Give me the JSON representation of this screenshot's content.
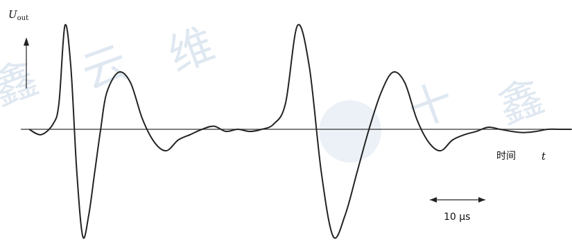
{
  "chart_data": {
    "type": "line",
    "title": "",
    "ylabel": "U",
    "ylabel_sub": "out",
    "xlabel_text": "时间",
    "xlabel_symbol": "t",
    "scale_bar": {
      "label": "10 μs",
      "duration_us": 10
    },
    "y_ticks_shown": false,
    "grid": false,
    "series": [
      {
        "values_description_free": true,
        "x_us": [
          0,
          2,
          4,
          5,
          6,
          7,
          8,
          9,
          10,
          11,
          12,
          13,
          15,
          17,
          19,
          21,
          23,
          25,
          27,
          29,
          31,
          33,
          35,
          37,
          39,
          41,
          43,
          45,
          47,
          49,
          51,
          53,
          55,
          57,
          59,
          61,
          63,
          65,
          67,
          69,
          71,
          73,
          75,
          77,
          79,
          81,
          83,
          85,
          87,
          89,
          91
        ],
        "y_rel": [
          0,
          -0.05,
          0.05,
          0.25,
          1.0,
          0.6,
          -0.4,
          -1.0,
          -0.8,
          -0.4,
          0.0,
          0.35,
          0.55,
          0.45,
          0.1,
          -0.12,
          -0.2,
          -0.1,
          -0.05,
          0.0,
          0.03,
          -0.02,
          0.0,
          -0.02,
          0.0,
          0.05,
          0.25,
          1.0,
          0.6,
          -0.4,
          -1.0,
          -0.8,
          -0.4,
          0.0,
          0.35,
          0.55,
          0.45,
          0.1,
          -0.12,
          -0.2,
          -0.1,
          -0.05,
          -0.02,
          0.02,
          0.0,
          -0.02,
          -0.03,
          -0.02,
          0.0,
          0.0,
          0.0
        ]
      }
    ]
  },
  "watermark_text": "鑫云维十鑫"
}
